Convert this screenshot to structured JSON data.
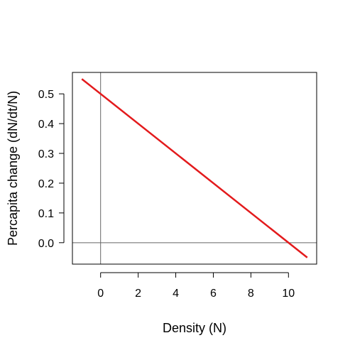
{
  "chart_data": {
    "type": "line",
    "title": "",
    "xlabel": "Density (N)",
    "ylabel": "Percapita change (dN/dt/N)",
    "xlim": [
      -1.5,
      11.5
    ],
    "ylim": [
      -0.072,
      0.572
    ],
    "x_ticks": [
      0,
      2,
      4,
      6,
      8,
      10
    ],
    "y_ticks": [
      0.0,
      0.1,
      0.2,
      0.3,
      0.4,
      0.5
    ],
    "x_tick_labels": [
      "0",
      "2",
      "4",
      "6",
      "8",
      "10"
    ],
    "y_tick_labels": [
      "0.0",
      "0.1",
      "0.2",
      "0.3",
      "0.4",
      "0.5"
    ],
    "reference_lines": [
      {
        "orientation": "vertical",
        "value": 0,
        "color": "#666666"
      },
      {
        "orientation": "horizontal",
        "value": 0,
        "color": "#666666"
      }
    ],
    "series": [
      {
        "color": "#e31a1c",
        "x": [
          -1,
          11
        ],
        "y": [
          0.55,
          -0.05
        ]
      }
    ],
    "grid": false,
    "legend": "none"
  }
}
